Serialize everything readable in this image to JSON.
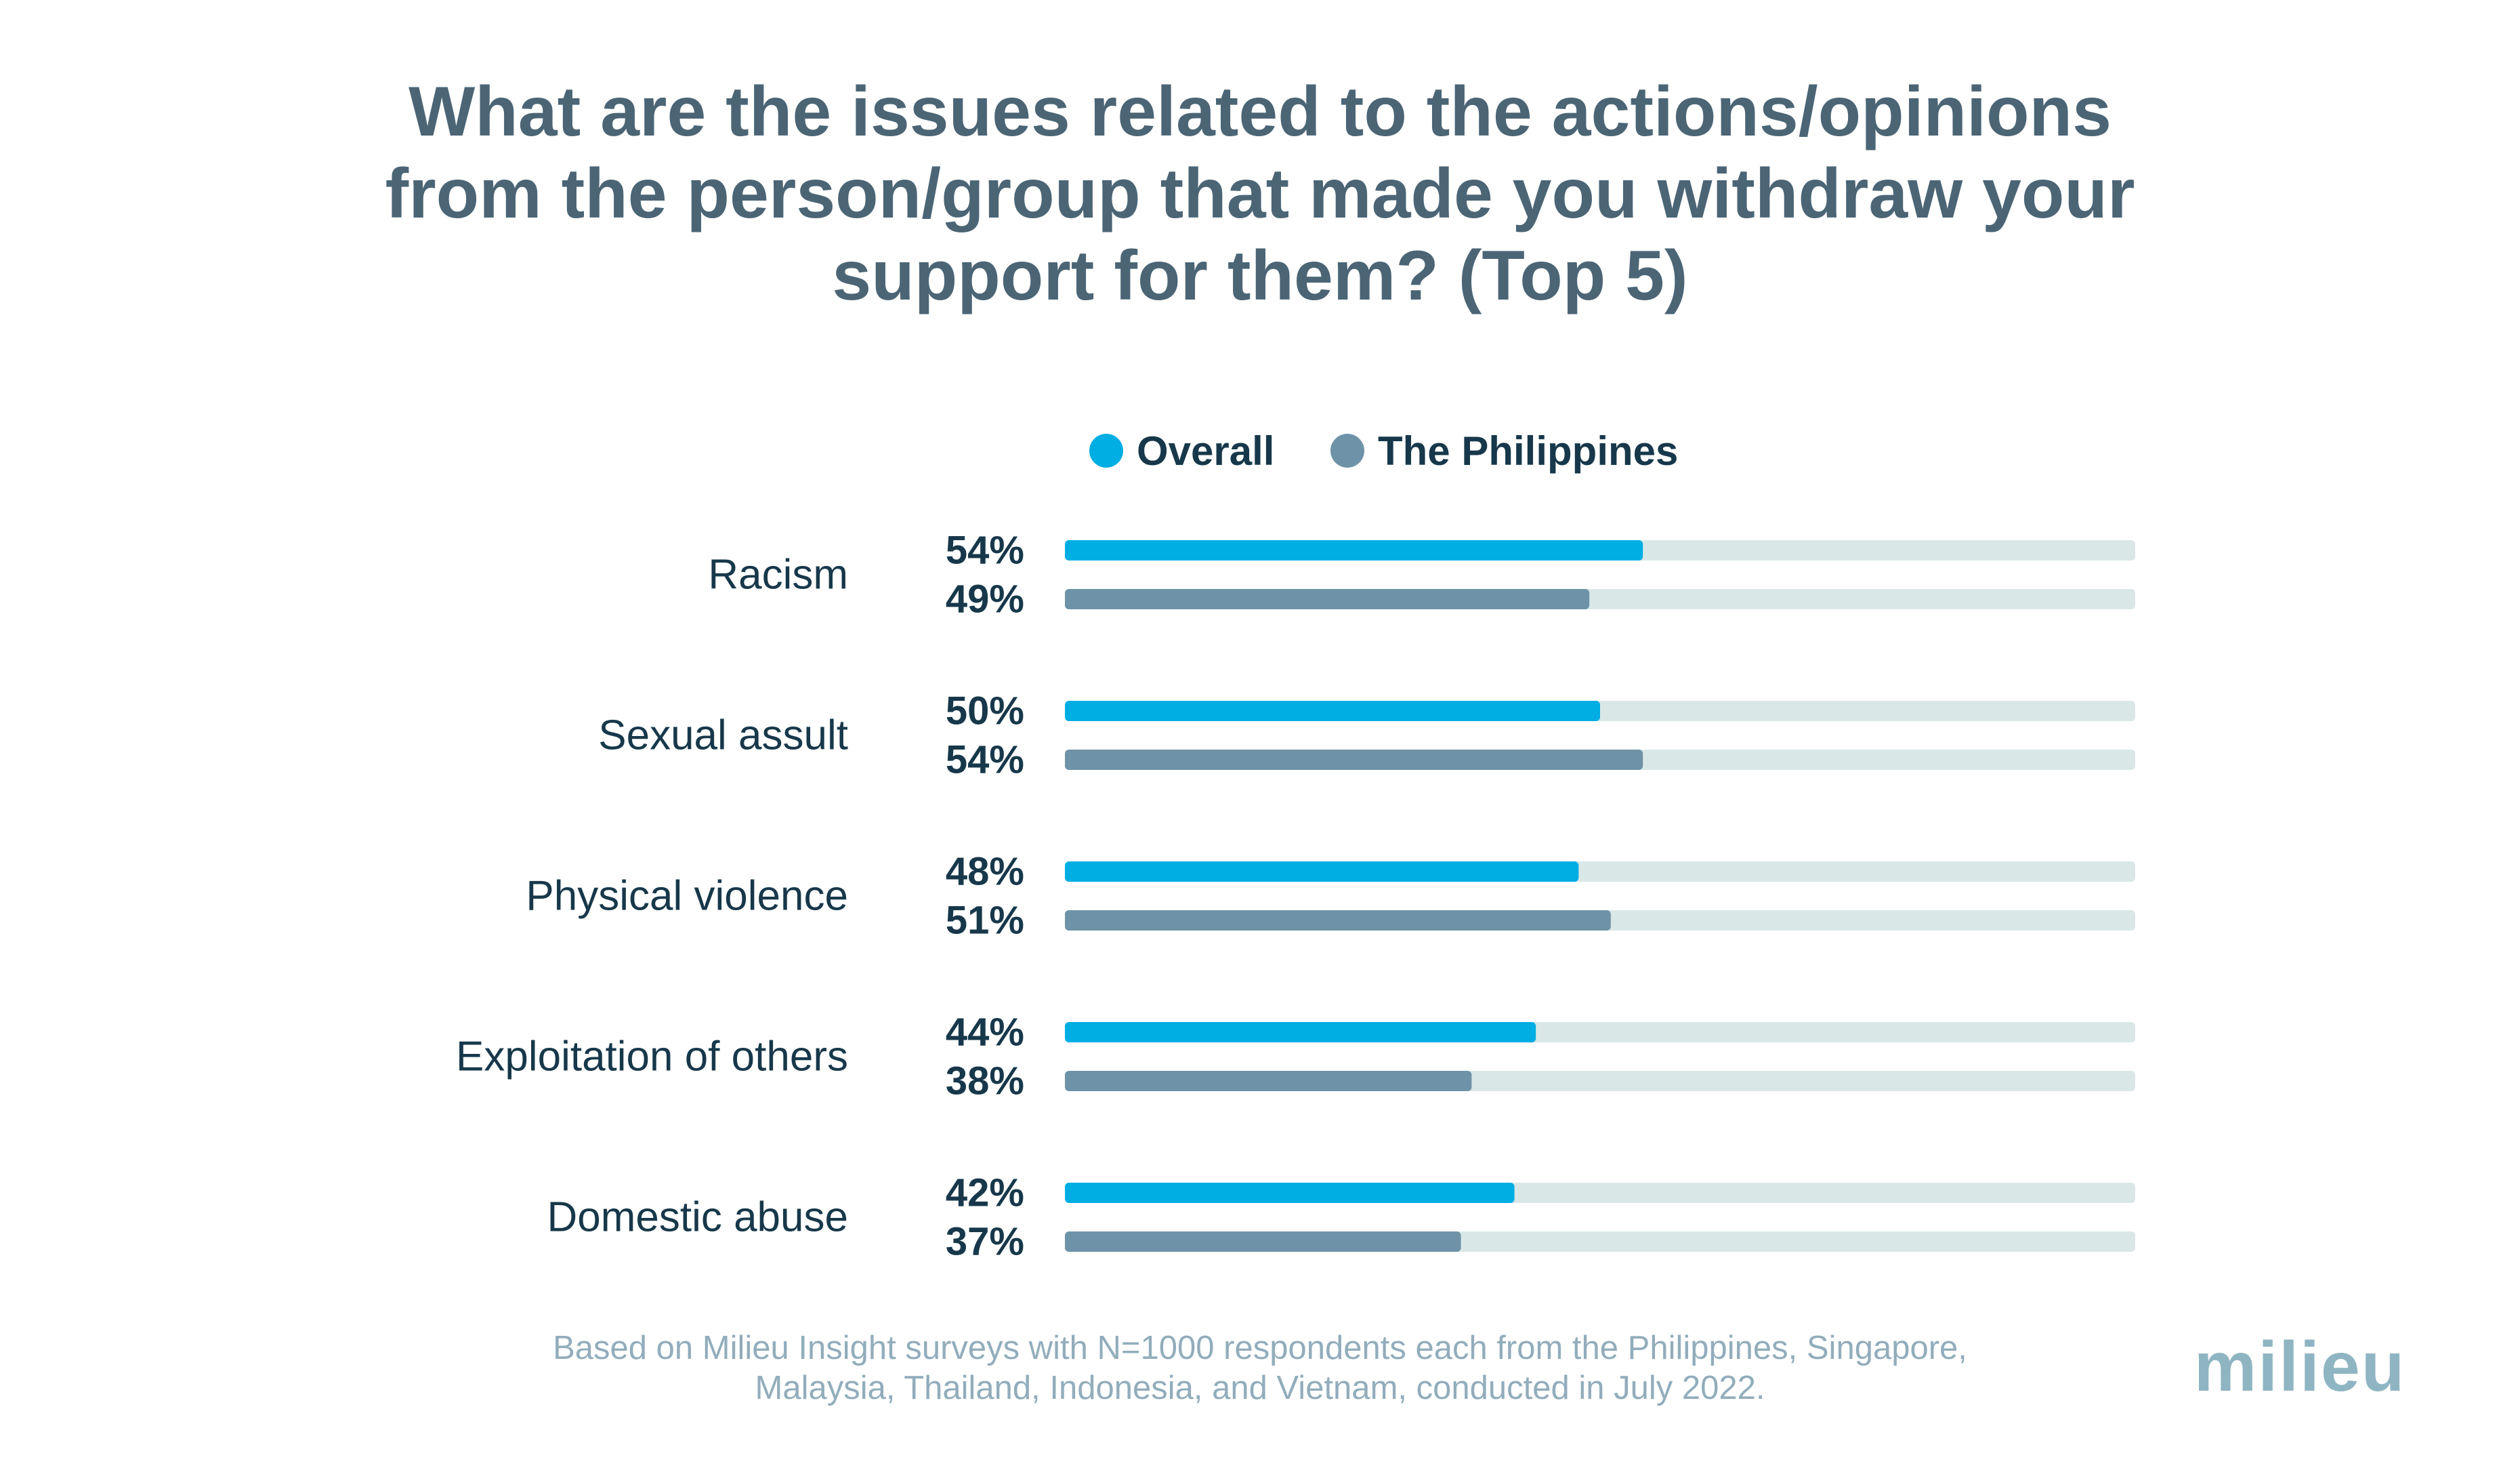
{
  "chart_data": {
    "type": "bar",
    "orientation": "horizontal",
    "title": "What are the issues related to the actions/opinions from the person/group that made you withdraw your support for them? (Top 5)",
    "title_lines": [
      "What are the issues related to the actions/opinions",
      "from the person/group that made you withdraw your",
      "support for them? (Top 5)"
    ],
    "categories": [
      "Racism",
      "Sexual assult",
      "Physical violence",
      "Exploitation of others",
      "Domestic abuse"
    ],
    "series": [
      {
        "name": "Overall",
        "color": "#00aee3",
        "values": [
          54,
          50,
          48,
          44,
          42
        ],
        "labels": [
          "54%",
          "50%",
          "48%",
          "44%",
          "42%"
        ]
      },
      {
        "name": "The Philippines",
        "color": "#6e93a8",
        "values": [
          49,
          54,
          51,
          38,
          37
        ],
        "labels": [
          "49%",
          "54%",
          "51%",
          "38%",
          "37%"
        ]
      }
    ],
    "xlim": [
      0,
      100
    ],
    "track_color": "#d9e8e7",
    "legend_position": "top",
    "grid": false
  },
  "footnote_lines": [
    "Based on Milieu Insight surveys with N=1000 respondents each from the Philippines, Singapore,",
    "Malaysia, Thailand, Indonesia, and Vietnam, conducted in July 2022."
  ],
  "logo_text": "milieu"
}
